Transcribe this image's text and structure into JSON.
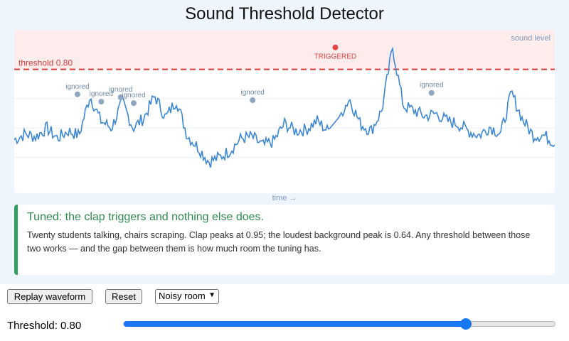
{
  "title": "Sound Threshold Detector",
  "chart": {
    "legend_label": "sound level",
    "threshold_label": "threshold 0.80",
    "x_axis_label": "time →",
    "threshold": 0.8,
    "triggered_label": "TRIGGERED",
    "ignored_label": "ignored",
    "colors": {
      "wave": "#3b86d6",
      "threshold_line": "#d63b3b",
      "zone_fill": "#fdecec",
      "ignored_marker": "#8fa6bf",
      "triggered_marker": "#e04343"
    }
  },
  "chart_data": {
    "type": "line",
    "ylim": [
      0,
      1
    ],
    "threshold": 0.8,
    "x": [
      0,
      2,
      4,
      6,
      8,
      10,
      12,
      14,
      16,
      18,
      20,
      22,
      24,
      26,
      28,
      30,
      32,
      34,
      36,
      38,
      40,
      42,
      44,
      46,
      48,
      50,
      52,
      54,
      56,
      58,
      60,
      62,
      64,
      66,
      68,
      70,
      72,
      74,
      76,
      78,
      80,
      82,
      84,
      86,
      88,
      90,
      92,
      94,
      96,
      98,
      100
    ],
    "values": [
      0.32,
      0.36,
      0.34,
      0.4,
      0.33,
      0.38,
      0.35,
      0.62,
      0.45,
      0.4,
      0.58,
      0.4,
      0.47,
      0.62,
      0.47,
      0.59,
      0.35,
      0.27,
      0.17,
      0.2,
      0.25,
      0.33,
      0.34,
      0.28,
      0.31,
      0.43,
      0.38,
      0.39,
      0.45,
      0.38,
      0.47,
      0.6,
      0.43,
      0.38,
      0.52,
      0.95,
      0.55,
      0.52,
      0.48,
      0.5,
      0.45,
      0.43,
      0.38,
      0.35,
      0.41,
      0.36,
      0.64,
      0.46,
      0.35,
      0.35,
      0.3
    ],
    "ignored_peaks": [
      {
        "x": 11.7,
        "y": 0.63
      },
      {
        "x": 16.1,
        "y": 0.58
      },
      {
        "x": 19.7,
        "y": 0.61
      },
      {
        "x": 22.1,
        "y": 0.57
      },
      {
        "x": 44.1,
        "y": 0.59
      },
      {
        "x": 77.2,
        "y": 0.64
      }
    ],
    "triggered_peak": {
      "x": 59.4,
      "y": 0.95
    }
  },
  "status": {
    "title": "Tuned: the clap triggers and nothing else does.",
    "body": "Twenty students talking, chairs scraping.  Clap peaks at 0.95; the loudest background peak is 0.64. Any threshold between those two works — and the gap between them is how much room the tuning has."
  },
  "controls": {
    "replay_label": "Replay waveform",
    "reset_label": "Reset",
    "scenario_value": "Noisy room",
    "threshold_label": "Threshold: 0.80",
    "threshold_value": 0.8,
    "slider_min": 0,
    "slider_max": 1
  }
}
